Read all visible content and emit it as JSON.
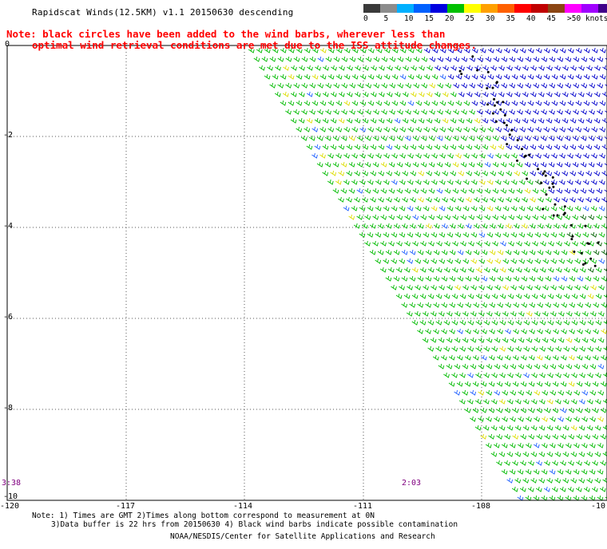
{
  "title": "Rapidscat Winds(12.5KM) v1.1 20150630 descending",
  "note": {
    "line1": "Note: black circles have been added to the wind barbs, wherever less than",
    "line2": "optimal wind retrieval conditions are met due to the ISS attitude changes."
  },
  "legend": {
    "colors": [
      "#3a3a3a",
      "#8c8c8c",
      "#00b0ff",
      "#0060ff",
      "#0000e0",
      "#00c000",
      "#ffff00",
      "#ffa000",
      "#ff6000",
      "#ff0000",
      "#c00000",
      "#8b4513",
      "#ff00ff",
      "#a000ff",
      "#40008a"
    ],
    "labels": [
      "0",
      "5",
      "10",
      "15",
      "20",
      "25",
      "30",
      "35",
      "40",
      "45",
      ">50 knots"
    ]
  },
  "axes": {
    "x_ticks": [
      "-120",
      "-117",
      "-114",
      "-111",
      "-108",
      "-10"
    ],
    "y_ticks": [
      "0",
      "-2",
      "-4",
      "-6",
      "-8",
      "-10"
    ]
  },
  "times": [
    "3:38",
    "2:03"
  ],
  "footer": {
    "line1": "Note: 1) Times are GMT 2)Times along bottom correspond to measurement at 0N",
    "line2": "3)Data buffer is 22 hrs from 20150630 4) Black wind barbs indicate possible contamination",
    "line3": "NOAA/NESDIS/Center for Satellite Applications and Research"
  }
}
